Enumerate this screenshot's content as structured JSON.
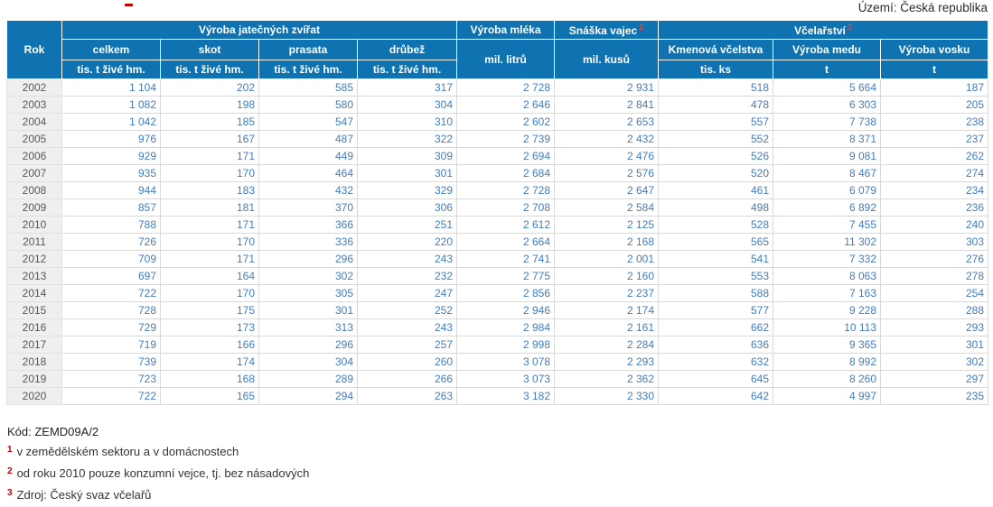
{
  "territory_label": "Území: Česká republika",
  "chart_data": {
    "type": "table",
    "header": {
      "rok": "Rok",
      "group_slaughter": "Výroba jatečných zvířat",
      "col_celkem": "celkem",
      "col_skot": "skot",
      "col_prasata": "prasata",
      "col_drubez": "drůbež",
      "unit_live_weight": "tis. t živé hm.",
      "col_milk": "Výroba mléka",
      "unit_milk": "mil. litrů",
      "col_eggs": "Snáška vajec",
      "col_eggs_sup": "2",
      "unit_eggs": "mil. kusů",
      "group_beekeeping": "Včelařství",
      "group_beekeeping_sup": "3",
      "col_colonies": "Kmenová včelstva",
      "unit_colonies": "tis. ks",
      "col_honey": "Výroba medu",
      "unit_honey": "t",
      "col_wax": "Výroba vosku",
      "unit_wax": "t"
    },
    "rows": [
      {
        "rok": "2002",
        "values": [
          "1 104",
          "202",
          "585",
          "317",
          "2 728",
          "2 931",
          "518",
          "5 664",
          "187"
        ]
      },
      {
        "rok": "2003",
        "values": [
          "1 082",
          "198",
          "580",
          "304",
          "2 646",
          "2 841",
          "478",
          "6 303",
          "205"
        ]
      },
      {
        "rok": "2004",
        "values": [
          "1 042",
          "185",
          "547",
          "310",
          "2 602",
          "2 653",
          "557",
          "7 738",
          "238"
        ]
      },
      {
        "rok": "2005",
        "values": [
          "976",
          "167",
          "487",
          "322",
          "2 739",
          "2 432",
          "552",
          "8 371",
          "237"
        ]
      },
      {
        "rok": "2006",
        "values": [
          "929",
          "171",
          "449",
          "309",
          "2 694",
          "2 476",
          "526",
          "9 081",
          "262"
        ]
      },
      {
        "rok": "2007",
        "values": [
          "935",
          "170",
          "464",
          "301",
          "2 684",
          "2 576",
          "520",
          "8 467",
          "274"
        ]
      },
      {
        "rok": "2008",
        "values": [
          "944",
          "183",
          "432",
          "329",
          "2 728",
          "2 647",
          "461",
          "6 079",
          "234"
        ]
      },
      {
        "rok": "2009",
        "values": [
          "857",
          "181",
          "370",
          "306",
          "2 708",
          "2 584",
          "498",
          "6 892",
          "236"
        ]
      },
      {
        "rok": "2010",
        "values": [
          "788",
          "171",
          "366",
          "251",
          "2 612",
          "2 125",
          "528",
          "7 455",
          "240"
        ]
      },
      {
        "rok": "2011",
        "values": [
          "726",
          "170",
          "336",
          "220",
          "2 664",
          "2 168",
          "565",
          "11 302",
          "303"
        ]
      },
      {
        "rok": "2012",
        "values": [
          "709",
          "171",
          "296",
          "243",
          "2 741",
          "2 001",
          "541",
          "7 332",
          "276"
        ]
      },
      {
        "rok": "2013",
        "values": [
          "697",
          "164",
          "302",
          "232",
          "2 775",
          "2 160",
          "553",
          "8 063",
          "278"
        ]
      },
      {
        "rok": "2014",
        "values": [
          "722",
          "170",
          "305",
          "247",
          "2 856",
          "2 237",
          "588",
          "7 163",
          "254"
        ]
      },
      {
        "rok": "2015",
        "values": [
          "728",
          "175",
          "301",
          "252",
          "2 946",
          "2 174",
          "577",
          "9 228",
          "288"
        ]
      },
      {
        "rok": "2016",
        "values": [
          "729",
          "173",
          "313",
          "243",
          "2 984",
          "2 161",
          "662",
          "10 113",
          "293"
        ]
      },
      {
        "rok": "2017",
        "values": [
          "719",
          "166",
          "296",
          "257",
          "2 998",
          "2 284",
          "636",
          "9 365",
          "301"
        ]
      },
      {
        "rok": "2018",
        "values": [
          "739",
          "174",
          "304",
          "260",
          "3 078",
          "2 293",
          "632",
          "8 992",
          "302"
        ]
      },
      {
        "rok": "2019",
        "values": [
          "723",
          "168",
          "289",
          "266",
          "3 073",
          "2 362",
          "645",
          "8 260",
          "297"
        ]
      },
      {
        "rok": "2020",
        "values": [
          "722",
          "165",
          "294",
          "263",
          "3 182",
          "2 330",
          "642",
          "4 997",
          "235"
        ]
      }
    ]
  },
  "footer": {
    "code": "Kód: ZEMD09A/2",
    "notes": [
      {
        "sup": "1",
        "text": "v zemědělském sektoru a v domácnostech"
      },
      {
        "sup": "2",
        "text": "od roku 2010 pouze konzumní vejce, tj. bez násadových"
      },
      {
        "sup": "3",
        "text": "Zdroj: Český svaz včelařů"
      }
    ]
  },
  "colors": {
    "header_bg": "#0F72B1",
    "value_text": "#447CBE",
    "year_text": "#595959",
    "year_bg": "#EFEFEF",
    "footnote_red": "#C00000"
  }
}
